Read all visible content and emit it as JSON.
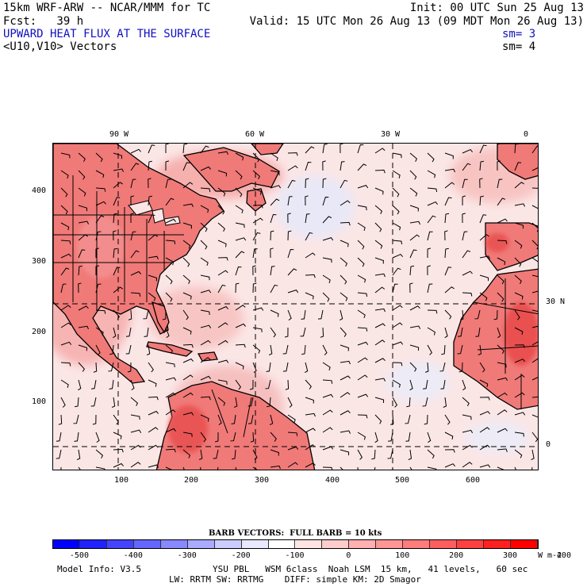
{
  "header": {
    "model_title": "15km WRF-ARW -- NCAR/MMM for TC",
    "init": "Init: 00 UTC Sun 25 Aug 13",
    "fcst": "Fcst:   39 h",
    "valid": "Valid: 15 UTC Mon 26 Aug 13 (09 MDT Mon 26 Aug 13)",
    "field_name": "UPWARD HEAT FLUX AT THE SURFACE",
    "field_sm": "sm= 3",
    "vector_name": "<U10,V10> Vectors",
    "vector_sm": "sm= 4"
  },
  "colors": {
    "field_text": "#1010c0",
    "land_base": "#f07a78",
    "ocean_base": "#fbe6e6",
    "cool_patch": "#e6e8f8"
  },
  "map": {
    "top_longitudes": [
      "90 W",
      "60 W",
      "30 W",
      "0"
    ],
    "right_latitudes": [
      "30 N",
      "0"
    ],
    "left_axis_ticks": [
      "400",
      "300",
      "200",
      "100"
    ],
    "bottom_axis_ticks": [
      "100",
      "200",
      "300",
      "400",
      "500",
      "600"
    ]
  },
  "colorbar": {
    "title": "BARB VECTORS:  FULL BARB = 10 kts",
    "labels": [
      "-500",
      "-400",
      "-300",
      "-200",
      "-100",
      "0",
      "100",
      "200",
      "300",
      "400"
    ],
    "units": "W m-2",
    "colors": [
      "#0000ff",
      "#2222ff",
      "#4444ff",
      "#6666ff",
      "#8888ff",
      "#aaaaff",
      "#ccccff",
      "#e8e8ff",
      "#ffffff",
      "#ffe4e4",
      "#ffcccc",
      "#ffb0b0",
      "#ff9696",
      "#ff7c7c",
      "#ff5e5e",
      "#ff4040",
      "#ff2020",
      "#ff0000"
    ]
  },
  "footer": {
    "model_info": "Model Info: V3.5",
    "physics": "YSU PBL   WSM 6class  Noah LSM  15 km,   41 levels,   60 sec",
    "radiation": "LW: RRTM SW: RRTMG    DIFF: simple KM: 2D Smagor"
  }
}
